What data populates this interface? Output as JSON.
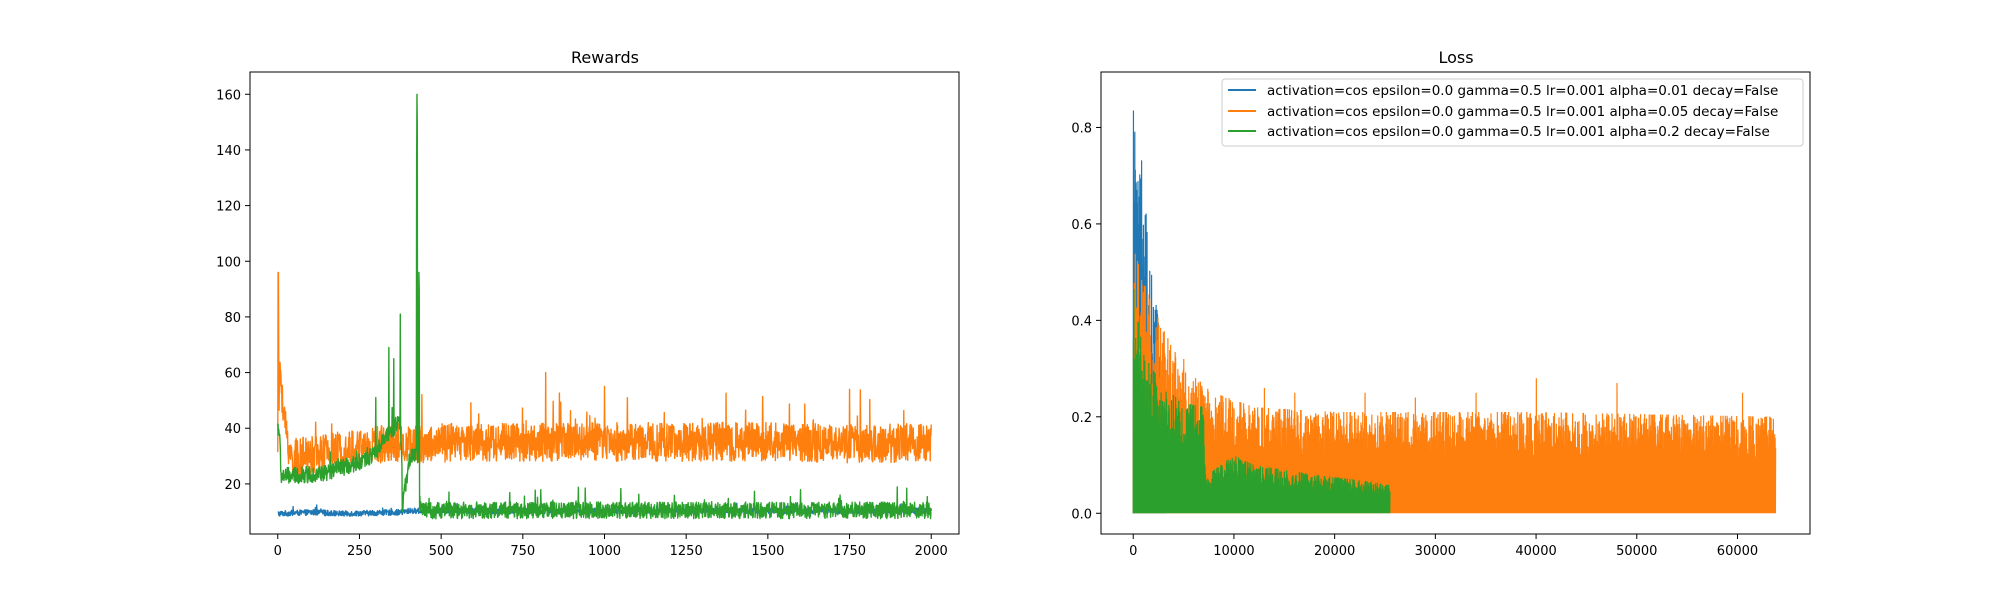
{
  "chart_data": [
    {
      "type": "line",
      "title": "Rewards",
      "xlabel": "",
      "ylabel": "",
      "xlim": [
        -85,
        2085
      ],
      "ylim": [
        2,
        168
      ],
      "xticks": [
        0,
        250,
        500,
        750,
        1000,
        1250,
        1500,
        1750,
        2000
      ],
      "yticks": [
        20,
        40,
        60,
        80,
        100,
        120,
        140,
        160
      ],
      "grid": false,
      "x": {
        "start": 0,
        "end": 2000
      },
      "series": [
        {
          "color": "#1f77b4",
          "points": [
            [
              0,
              9
            ],
            [
              100,
              9.5
            ],
            [
              200,
              9
            ],
            [
              300,
              9.3
            ],
            [
              380,
              9.5
            ],
            [
              400,
              10
            ],
            [
              600,
              10
            ],
            [
              800,
              10
            ],
            [
              1000,
              10
            ],
            [
              1200,
              10
            ],
            [
              1400,
              10
            ],
            [
              1600,
              10
            ],
            [
              1800,
              10
            ],
            [
              2000,
              10
            ]
          ],
          "noise": 1.0,
          "spikes": []
        },
        {
          "color": "#ff7f0e",
          "points": [
            [
              0,
              35
            ],
            [
              8,
              60
            ],
            [
              15,
              45
            ],
            [
              40,
              27
            ],
            [
              100,
              28
            ],
            [
              200,
              30
            ],
            [
              300,
              32
            ],
            [
              350,
              33
            ],
            [
              400,
              32
            ],
            [
              600,
              33
            ],
            [
              800,
              33
            ],
            [
              1000,
              33
            ],
            [
              1200,
              33
            ],
            [
              1400,
              33
            ],
            [
              1600,
              33
            ],
            [
              1800,
              32
            ],
            [
              2000,
              33
            ]
          ],
          "noise": 7.0,
          "spikes": [
            [
              1,
              96
            ],
            [
              2,
              96
            ],
            [
              3,
              65
            ],
            [
              820,
              60
            ],
            [
              1000,
              55
            ],
            [
              1750,
              54
            ]
          ]
        },
        {
          "color": "#2ca02c",
          "points": [
            [
              0,
              40
            ],
            [
              5,
              38
            ],
            [
              10,
              22
            ],
            [
              50,
              22
            ],
            [
              150,
              23
            ],
            [
              250,
              27
            ],
            [
              300,
              30
            ],
            [
              330,
              36
            ],
            [
              360,
              40
            ],
            [
              375,
              42
            ],
            [
              383,
              12
            ],
            [
              390,
              18
            ],
            [
              405,
              28
            ],
            [
              420,
              30
            ],
            [
              428,
              29
            ],
            [
              432,
              30
            ],
            [
              436,
              10
            ],
            [
              460,
              9.5
            ],
            [
              600,
              9.6
            ],
            [
              800,
              9.6
            ],
            [
              1000,
              9.6
            ],
            [
              1200,
              9.6
            ],
            [
              1400,
              9.6
            ],
            [
              1600,
              9.6
            ],
            [
              1800,
              9.6
            ],
            [
              2000,
              9.6
            ]
          ],
          "noise": 3.0,
          "spikes": [
            [
              300,
              51
            ],
            [
              340,
              69
            ],
            [
              355,
              65
            ],
            [
              375,
              81
            ],
            [
              381,
              10
            ],
            [
              382,
              10
            ],
            [
              425,
              135
            ],
            [
              426,
              160
            ],
            [
              427,
              150
            ],
            [
              431,
              30
            ],
            [
              432,
              96
            ],
            [
              433,
              90
            ],
            [
              434,
              11
            ]
          ]
        }
      ]
    },
    {
      "type": "line",
      "title": "Loss",
      "xlabel": "",
      "ylabel": "",
      "xlim": [
        -3200,
        67200
      ],
      "ylim": [
        -0.043,
        0.915
      ],
      "xticks": [
        0,
        10000,
        20000,
        30000,
        40000,
        50000,
        60000
      ],
      "yticks": [
        0.0,
        0.2,
        0.4,
        0.6,
        0.8
      ],
      "grid": false,
      "legend_position": "top-right",
      "series": [
        {
          "name": "activation=cos epsilon=0.0 gamma=0.5 lr=0.001 alpha=0.01 decay=False",
          "color": "#1f77b4",
          "x_end": 3200,
          "envelope": [
            [
              0,
              0.87
            ],
            [
              400,
              0.8
            ],
            [
              1000,
              0.7
            ],
            [
              1600,
              0.57
            ],
            [
              2200,
              0.45
            ],
            [
              2800,
              0.33
            ],
            [
              3200,
              0.25
            ]
          ]
        },
        {
          "name": "activation=cos epsilon=0.0 gamma=0.5 lr=0.001 alpha=0.05 decay=False",
          "color": "#ff7f0e",
          "x_end": 63800,
          "envelope": [
            [
              0,
              0.55
            ],
            [
              1500,
              0.45
            ],
            [
              3000,
              0.38
            ],
            [
              5000,
              0.3
            ],
            [
              8000,
              0.25
            ],
            [
              12000,
              0.22
            ],
            [
              20000,
              0.21
            ],
            [
              40000,
              0.21
            ],
            [
              63800,
              0.2
            ]
          ],
          "spikes": [
            [
              2500,
              0.39
            ],
            [
              40000,
              0.28
            ],
            [
              48000,
              0.27
            ],
            [
              60500,
              0.25
            ],
            [
              5000,
              0.32
            ],
            [
              13000,
              0.26
            ],
            [
              23000,
              0.25
            ],
            [
              34000,
              0.25
            ],
            [
              16000,
              0.25
            ],
            [
              28000,
              0.24
            ]
          ]
        },
        {
          "name": "activation=cos epsilon=0.0 gamma=0.5 lr=0.001 alpha=0.2 decay=False",
          "color": "#2ca02c",
          "x_end": 25500,
          "envelope": [
            [
              0,
              0.5
            ],
            [
              300,
              0.42
            ],
            [
              1000,
              0.33
            ],
            [
              3000,
              0.26
            ],
            [
              5000,
              0.23
            ],
            [
              7000,
              0.22
            ],
            [
              7200,
              0.07
            ],
            [
              8000,
              0.09
            ],
            [
              10000,
              0.12
            ],
            [
              12000,
              0.1
            ],
            [
              15000,
              0.09
            ],
            [
              18000,
              0.08
            ],
            [
              22000,
              0.07
            ],
            [
              25500,
              0.06
            ]
          ]
        }
      ]
    }
  ]
}
